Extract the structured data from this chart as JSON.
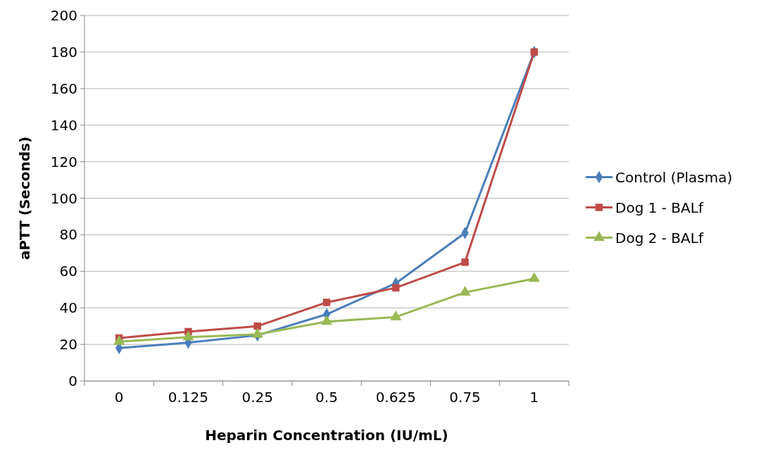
{
  "chart_data": {
    "type": "line",
    "xlabel": "Heparin Concentration (IU/mL)",
    "ylabel": "aPTT (Seconds)",
    "categories": [
      "0",
      "0.125",
      "0.25",
      "0.5",
      "0.625",
      "0.75",
      "1"
    ],
    "ylim": [
      0,
      200
    ],
    "yticks": [
      0,
      20,
      40,
      60,
      80,
      100,
      120,
      140,
      160,
      180,
      200
    ],
    "grid": "y",
    "legend": "right",
    "series": [
      {
        "name": "Control (Plasma)",
        "color": "#4a7ebb",
        "marker": "diamond",
        "values": [
          18,
          21,
          25,
          36.5,
          53.5,
          81,
          180
        ]
      },
      {
        "name": "Dog 1 - BALf",
        "color": "#be4b48",
        "marker": "square",
        "values": [
          23.5,
          27,
          30,
          43,
          51,
          65,
          180
        ]
      },
      {
        "name": "Dog 2 - BALf",
        "color": "#98b954",
        "marker": "triangle",
        "values": [
          21.5,
          24,
          25.5,
          32.5,
          35,
          48.5,
          56
        ]
      }
    ]
  }
}
